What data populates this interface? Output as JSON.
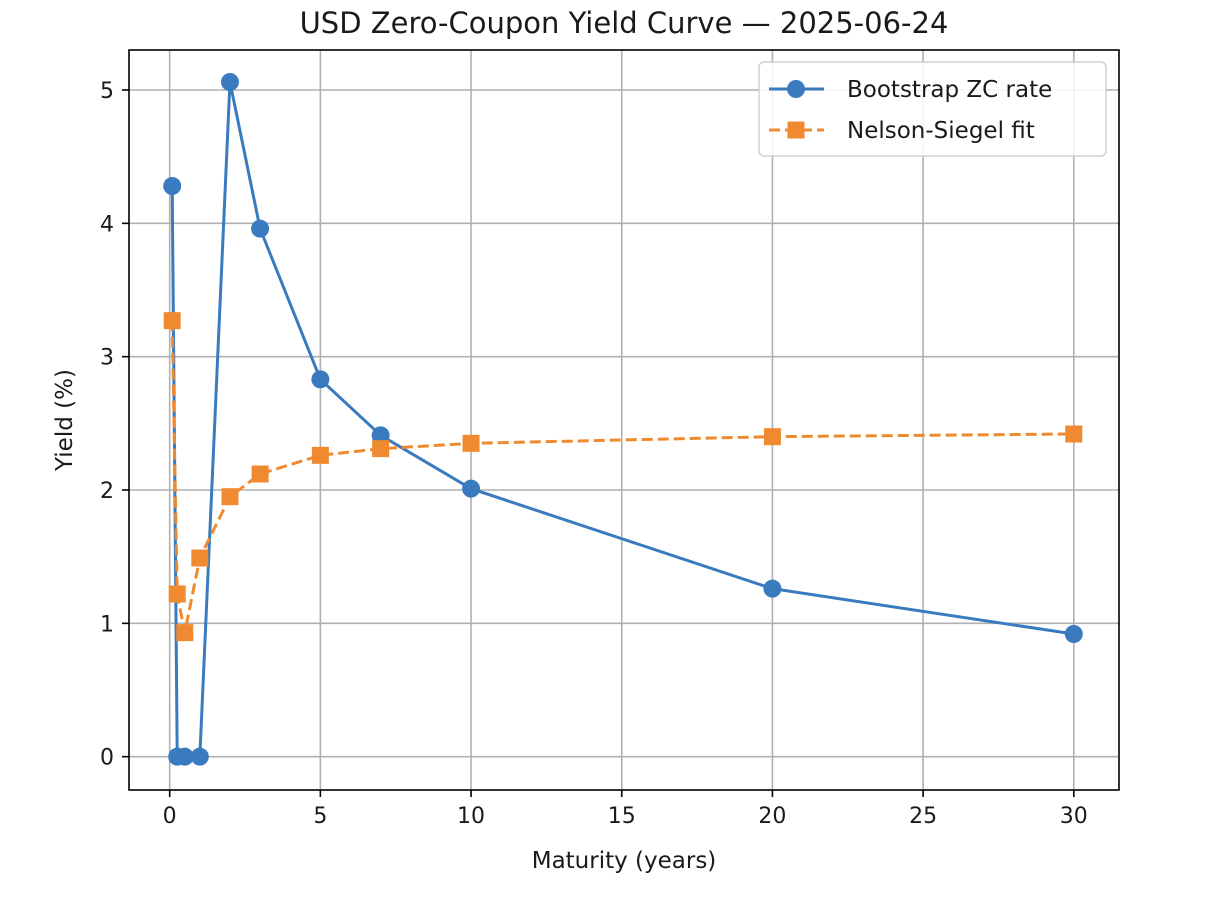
{
  "chart_data": {
    "type": "line",
    "title": "USD Zero-Coupon Yield Curve — 2025-06-24",
    "xlabel": "Maturity (years)",
    "ylabel": "Yield (%)",
    "xlim": [
      -1.35,
      31.5
    ],
    "ylim": [
      -0.25,
      5.3
    ],
    "xticks": [
      0,
      5,
      10,
      15,
      20,
      25,
      30
    ],
    "yticks": [
      0,
      1,
      2,
      3,
      4,
      5
    ],
    "grid": true,
    "legend_position": "top-right",
    "x": [
      0.083,
      0.25,
      0.5,
      1,
      2,
      3,
      5,
      7,
      10,
      20,
      30
    ],
    "series": [
      {
        "name": "Bootstrap ZC rate",
        "color": "#3a7bbf",
        "marker": "circle",
        "linestyle": "solid",
        "values": [
          4.28,
          0.0,
          0.0,
          0.0,
          5.06,
          3.96,
          2.83,
          2.41,
          2.01,
          1.26,
          0.92
        ]
      },
      {
        "name": "Nelson-Siegel fit",
        "color": "#f08a30",
        "marker": "square",
        "linestyle": "dashed",
        "values": [
          3.27,
          1.22,
          0.93,
          1.49,
          1.95,
          2.12,
          2.26,
          2.31,
          2.35,
          2.4,
          2.42
        ]
      }
    ]
  }
}
